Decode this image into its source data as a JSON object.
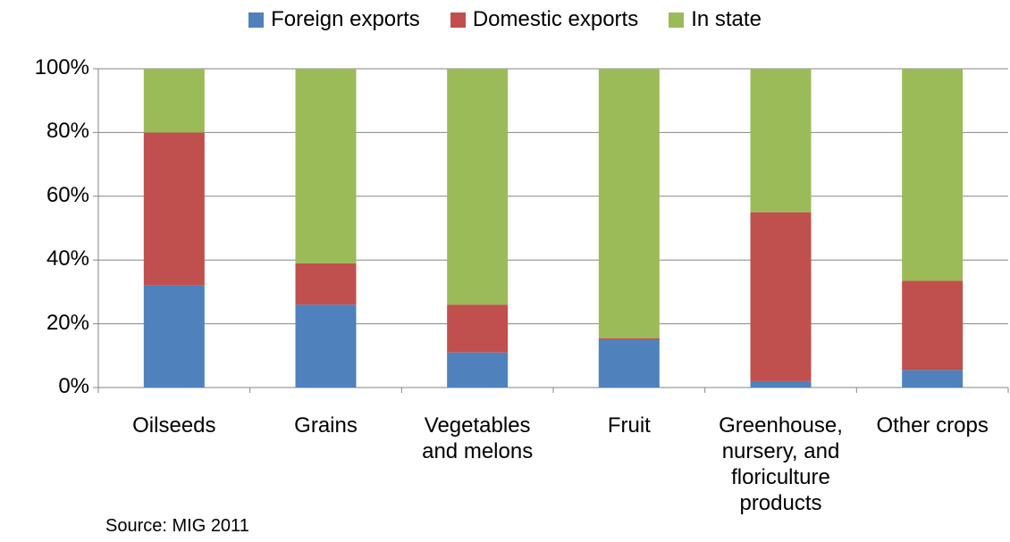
{
  "chart_data": {
    "type": "stacked_bar",
    "categories": [
      "Oilseeds",
      "Grains",
      "Vegetables and melons",
      "Fruit",
      "Greenhouse, nursery, and floriculture products",
      "Other crops"
    ],
    "series": [
      {
        "name": "Foreign exports",
        "color": "#4f81bd",
        "values": [
          32,
          26,
          11,
          15,
          2,
          5.5
        ]
      },
      {
        "name": "Domestic exports",
        "color": "#c0504d",
        "values": [
          48,
          13,
          15,
          0.5,
          53,
          28
        ]
      },
      {
        "name": "In state",
        "color": "#9bbb59",
        "values": [
          20,
          61,
          74,
          84.5,
          45,
          66.5
        ]
      }
    ],
    "ylim": [
      0,
      100
    ],
    "yticks": [
      {
        "value": 0,
        "label": "0%"
      },
      {
        "value": 20,
        "label": "20%"
      },
      {
        "value": 40,
        "label": "40%"
      },
      {
        "value": 60,
        "label": "60%"
      },
      {
        "value": 80,
        "label": "80%"
      },
      {
        "value": 100,
        "label": "100%"
      }
    ],
    "grid": true,
    "legend": "top",
    "source": "Source: MIG 2011"
  }
}
